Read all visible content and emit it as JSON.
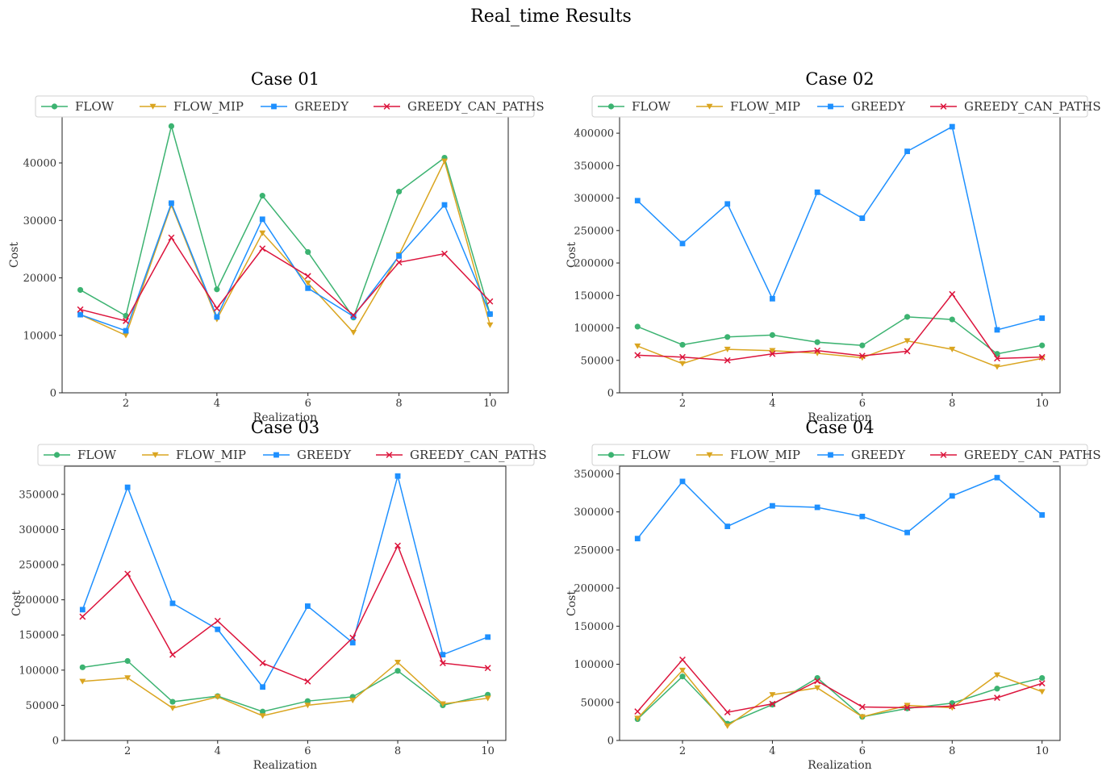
{
  "figure": {
    "title": "Real_time Results"
  },
  "colors": {
    "FLOW": "#3cb371",
    "FLOW_MIP": "#daa520",
    "GREEDY": "#1e90ff",
    "GREEDY_CAN_PATHS": "#dc143c"
  },
  "markers": {
    "FLOW": "circle",
    "FLOW_MIP": "triangle-down",
    "GREEDY": "square",
    "GREEDY_CAN_PATHS": "x"
  },
  "chart_data": [
    {
      "type": "line",
      "title": "Case 01",
      "xlabel": "Realization",
      "ylabel": "Cost",
      "x": [
        1,
        2,
        3,
        4,
        5,
        6,
        7,
        8,
        9,
        10
      ],
      "xticks": [
        2,
        4,
        6,
        8,
        10
      ],
      "xlim": [
        0.6,
        10.4
      ],
      "yticks": [
        0,
        10000,
        20000,
        30000,
        40000
      ],
      "ylim": [
        0,
        48000
      ],
      "legend": "top",
      "series": [
        {
          "name": "FLOW",
          "values": [
            17900,
            13400,
            46400,
            18000,
            34300,
            24500,
            13100,
            35000,
            40900,
            13700
          ]
        },
        {
          "name": "FLOW_MIP",
          "values": [
            13600,
            10000,
            32700,
            12800,
            27800,
            19100,
            10500,
            24000,
            40300,
            11800
          ]
        },
        {
          "name": "GREEDY",
          "values": [
            13600,
            10800,
            33000,
            13200,
            30200,
            18200,
            13300,
            23800,
            32700,
            13700
          ]
        },
        {
          "name": "GREEDY_CAN_PATHS",
          "values": [
            14500,
            12500,
            27000,
            14700,
            25100,
            20300,
            13500,
            22700,
            24200,
            15900
          ]
        }
      ]
    },
    {
      "type": "line",
      "title": "Case 02",
      "xlabel": "Realization",
      "ylabel": "Cost",
      "x": [
        1,
        2,
        3,
        4,
        5,
        6,
        7,
        8,
        9,
        10
      ],
      "xticks": [
        2,
        4,
        6,
        8,
        10
      ],
      "xlim": [
        0.6,
        10.4
      ],
      "yticks": [
        0,
        50000,
        100000,
        150000,
        200000,
        250000,
        300000,
        350000,
        400000
      ],
      "ylim": [
        0,
        425000
      ],
      "legend": "top",
      "series": [
        {
          "name": "FLOW",
          "values": [
            102000,
            74000,
            86000,
            89000,
            78000,
            73000,
            117000,
            113000,
            60000,
            73000
          ]
        },
        {
          "name": "FLOW_MIP",
          "values": [
            72000,
            45000,
            67000,
            65000,
            61000,
            54000,
            80000,
            67000,
            40000,
            53000
          ]
        },
        {
          "name": "GREEDY",
          "values": [
            296000,
            230000,
            291000,
            145000,
            309000,
            269000,
            372000,
            410000,
            97000,
            115000
          ]
        },
        {
          "name": "GREEDY_CAN_PATHS",
          "values": [
            58000,
            55000,
            50000,
            60000,
            65000,
            57000,
            64000,
            152000,
            53000,
            55000
          ]
        }
      ]
    },
    {
      "type": "line",
      "title": "Case 03",
      "xlabel": "Realization",
      "ylabel": "Cost",
      "x": [
        1,
        2,
        3,
        4,
        5,
        6,
        7,
        8,
        9,
        10
      ],
      "xticks": [
        2,
        4,
        6,
        8,
        10
      ],
      "xlim": [
        0.6,
        10.4
      ],
      "yticks": [
        0,
        50000,
        100000,
        150000,
        200000,
        250000,
        300000,
        350000
      ],
      "ylim": [
        0,
        390000
      ],
      "legend": "top",
      "series": [
        {
          "name": "FLOW",
          "values": [
            104000,
            113000,
            55000,
            63000,
            41000,
            56000,
            62000,
            99000,
            50000,
            65000
          ]
        },
        {
          "name": "FLOW_MIP",
          "values": [
            84000,
            89000,
            46000,
            62000,
            35000,
            50000,
            57000,
            111000,
            52000,
            60000
          ]
        },
        {
          "name": "GREEDY",
          "values": [
            186000,
            360000,
            195000,
            158000,
            76000,
            191000,
            139000,
            376000,
            122000,
            147000
          ]
        },
        {
          "name": "GREEDY_CAN_PATHS",
          "values": [
            176000,
            237000,
            122000,
            170000,
            110000,
            84000,
            146000,
            277000,
            110000,
            103000
          ]
        }
      ]
    },
    {
      "type": "line",
      "title": "Case 04",
      "xlabel": "Realization",
      "ylabel": "Cost",
      "x": [
        1,
        2,
        3,
        4,
        5,
        6,
        7,
        8,
        9,
        10
      ],
      "xticks": [
        2,
        4,
        6,
        8,
        10
      ],
      "xlim": [
        0.6,
        10.4
      ],
      "yticks": [
        0,
        50000,
        100000,
        150000,
        200000,
        250000,
        300000,
        350000
      ],
      "ylim": [
        0,
        360000
      ],
      "legend": "top",
      "series": [
        {
          "name": "FLOW",
          "values": [
            28000,
            84000,
            22000,
            47000,
            82000,
            31000,
            42000,
            49000,
            68000,
            82000
          ]
        },
        {
          "name": "FLOW_MIP",
          "values": [
            29000,
            92000,
            19000,
            60000,
            69000,
            31000,
            46000,
            43000,
            86000,
            64000
          ]
        },
        {
          "name": "GREEDY",
          "values": [
            265000,
            340000,
            281000,
            308000,
            306000,
            294000,
            273000,
            321000,
            345000,
            296000
          ]
        },
        {
          "name": "GREEDY_CAN_PATHS",
          "values": [
            38000,
            106000,
            37000,
            48000,
            78000,
            44000,
            43000,
            45000,
            56000,
            75000
          ]
        }
      ]
    }
  ]
}
